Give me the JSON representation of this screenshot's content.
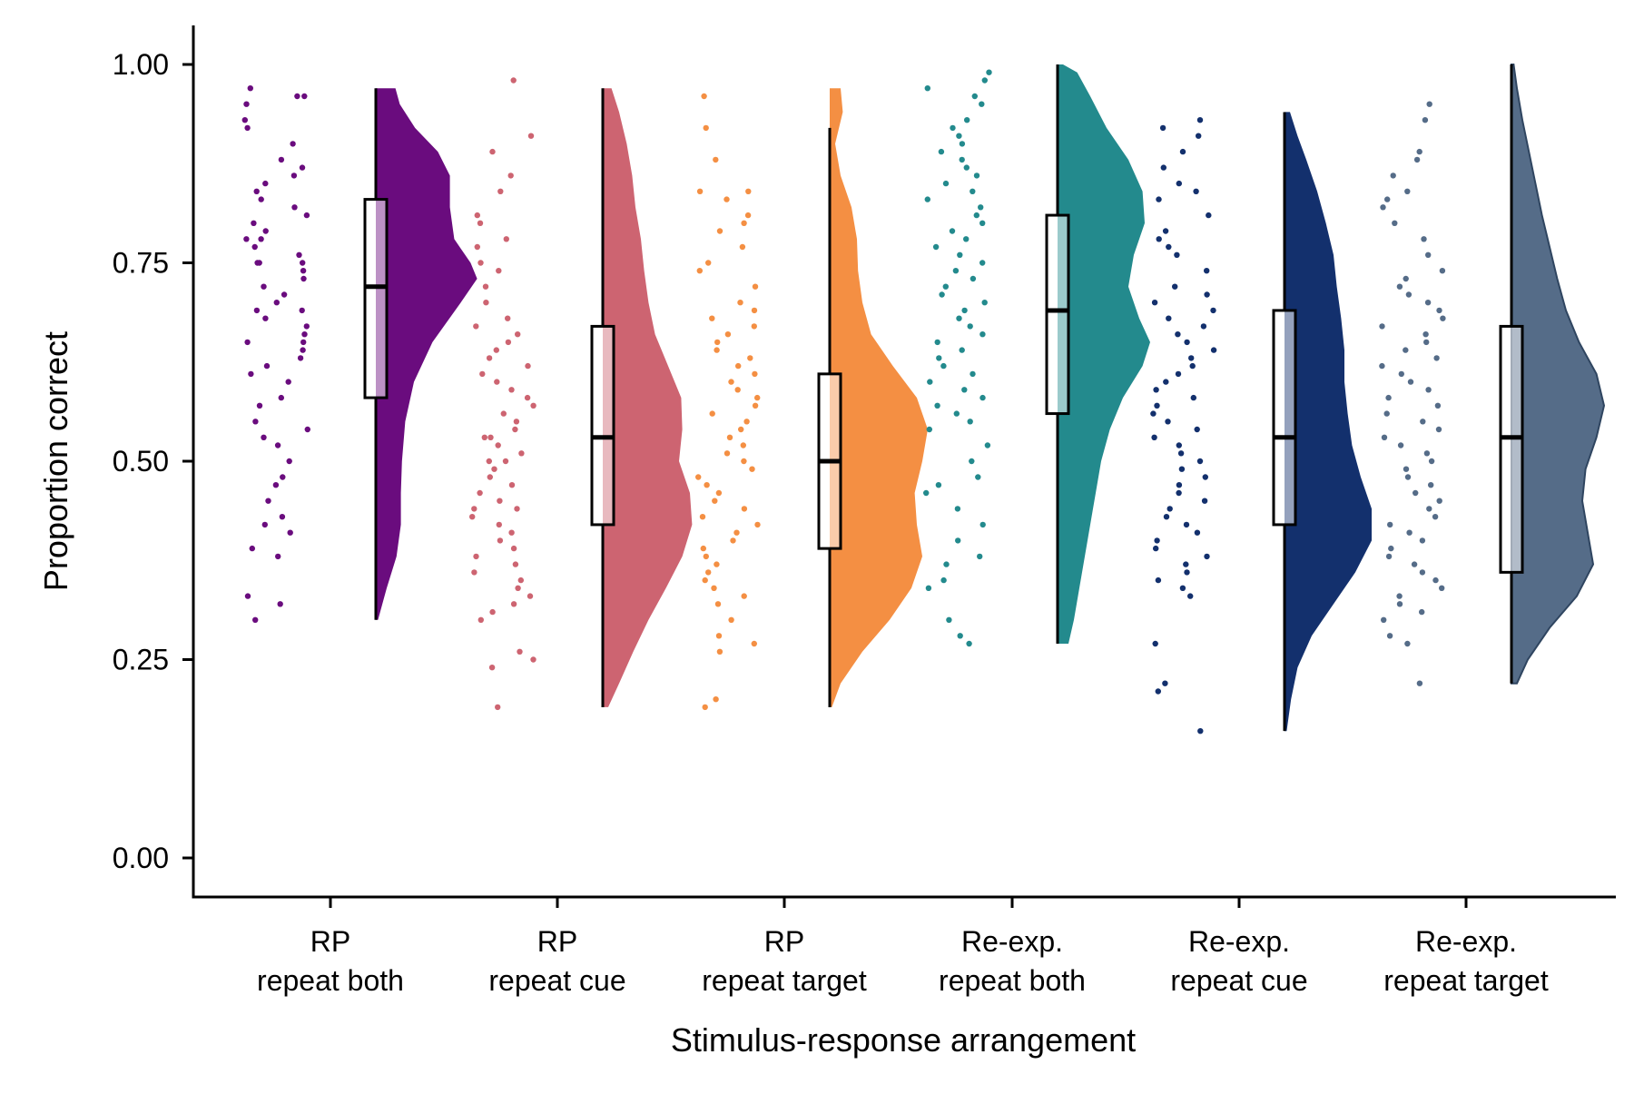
{
  "chart_data": {
    "type": "raincloud",
    "xlabel": "Stimulus-response arrangement",
    "ylabel": "Proportion correct",
    "ylim": [
      -0.05,
      1.05
    ],
    "yticks": [
      "0.00",
      "0.25",
      "0.50",
      "0.75",
      "1.00"
    ],
    "ytick_values": [
      0,
      0.25,
      0.5,
      0.75,
      1.0
    ],
    "grid": false,
    "legend": "none",
    "categories": [
      {
        "label_line1": "RP",
        "label_line2": "repeat both",
        "color": "#6a0c7e",
        "box": {
          "lower_whisker": 0.3,
          "q1": 0.58,
          "median": 0.72,
          "q3": 0.83,
          "upper_whisker": 0.97
        },
        "density_range": [
          0.3,
          0.97
        ],
        "density": [
          [
            0.3,
            0.02
          ],
          [
            0.34,
            0.1
          ],
          [
            0.38,
            0.19
          ],
          [
            0.42,
            0.23
          ],
          [
            0.46,
            0.23
          ],
          [
            0.5,
            0.24
          ],
          [
            0.55,
            0.27
          ],
          [
            0.6,
            0.35
          ],
          [
            0.65,
            0.52
          ],
          [
            0.7,
            0.78
          ],
          [
            0.73,
            0.93
          ],
          [
            0.75,
            0.87
          ],
          [
            0.78,
            0.72
          ],
          [
            0.82,
            0.68
          ],
          [
            0.86,
            0.68
          ],
          [
            0.89,
            0.57
          ],
          [
            0.92,
            0.36
          ],
          [
            0.95,
            0.22
          ],
          [
            0.97,
            0.18
          ]
        ],
        "points": [
          0.97,
          0.96,
          0.96,
          0.95,
          0.93,
          0.92,
          0.9,
          0.88,
          0.87,
          0.86,
          0.85,
          0.84,
          0.83,
          0.82,
          0.81,
          0.8,
          0.79,
          0.78,
          0.78,
          0.77,
          0.76,
          0.75,
          0.75,
          0.75,
          0.74,
          0.73,
          0.72,
          0.71,
          0.7,
          0.69,
          0.69,
          0.68,
          0.67,
          0.66,
          0.65,
          0.65,
          0.64,
          0.63,
          0.62,
          0.61,
          0.6,
          0.58,
          0.57,
          0.55,
          0.54,
          0.53,
          0.52,
          0.5,
          0.48,
          0.47,
          0.45,
          0.43,
          0.42,
          0.41,
          0.39,
          0.38,
          0.33,
          0.32,
          0.3
        ]
      },
      {
        "label_line1": "RP",
        "label_line2": "repeat cue",
        "color": "#cd6471",
        "box": {
          "lower_whisker": 0.19,
          "q1": 0.42,
          "median": 0.53,
          "q3": 0.67,
          "upper_whisker": 0.97
        },
        "density_range": [
          0.19,
          0.97
        ],
        "density": [
          [
            0.19,
            0.05
          ],
          [
            0.22,
            0.15
          ],
          [
            0.26,
            0.28
          ],
          [
            0.3,
            0.42
          ],
          [
            0.34,
            0.58
          ],
          [
            0.38,
            0.73
          ],
          [
            0.42,
            0.82
          ],
          [
            0.46,
            0.8
          ],
          [
            0.5,
            0.7
          ],
          [
            0.54,
            0.73
          ],
          [
            0.58,
            0.72
          ],
          [
            0.62,
            0.6
          ],
          [
            0.66,
            0.48
          ],
          [
            0.7,
            0.42
          ],
          [
            0.74,
            0.38
          ],
          [
            0.78,
            0.35
          ],
          [
            0.82,
            0.3
          ],
          [
            0.86,
            0.27
          ],
          [
            0.9,
            0.22
          ],
          [
            0.94,
            0.15
          ],
          [
            0.97,
            0.08
          ]
        ],
        "points": [
          0.98,
          0.91,
          0.89,
          0.86,
          0.84,
          0.81,
          0.8,
          0.78,
          0.77,
          0.75,
          0.74,
          0.72,
          0.7,
          0.68,
          0.67,
          0.66,
          0.65,
          0.64,
          0.63,
          0.62,
          0.61,
          0.6,
          0.59,
          0.58,
          0.57,
          0.56,
          0.55,
          0.54,
          0.53,
          0.53,
          0.52,
          0.51,
          0.5,
          0.5,
          0.49,
          0.48,
          0.47,
          0.46,
          0.45,
          0.44,
          0.44,
          0.43,
          0.42,
          0.41,
          0.4,
          0.39,
          0.38,
          0.37,
          0.36,
          0.35,
          0.34,
          0.33,
          0.32,
          0.31,
          0.3,
          0.26,
          0.25,
          0.24,
          0.19
        ]
      },
      {
        "label_line1": "RP",
        "label_line2": "repeat target",
        "color": "#f48f43",
        "box": {
          "lower_whisker": 0.19,
          "q1": 0.39,
          "median": 0.5,
          "q3": 0.61,
          "upper_whisker": 0.92
        },
        "density_range": [
          0.19,
          0.97
        ],
        "density": [
          [
            0.19,
            0.02
          ],
          [
            0.22,
            0.1
          ],
          [
            0.26,
            0.3
          ],
          [
            0.3,
            0.55
          ],
          [
            0.34,
            0.75
          ],
          [
            0.38,
            0.85
          ],
          [
            0.42,
            0.8
          ],
          [
            0.46,
            0.78
          ],
          [
            0.5,
            0.85
          ],
          [
            0.54,
            0.9
          ],
          [
            0.58,
            0.8
          ],
          [
            0.62,
            0.58
          ],
          [
            0.66,
            0.38
          ],
          [
            0.7,
            0.3
          ],
          [
            0.74,
            0.26
          ],
          [
            0.78,
            0.25
          ],
          [
            0.82,
            0.2
          ],
          [
            0.86,
            0.1
          ],
          [
            0.9,
            0.05
          ],
          [
            0.94,
            0.12
          ],
          [
            0.97,
            0.1
          ]
        ],
        "points": [
          0.96,
          0.92,
          0.88,
          0.84,
          0.84,
          0.83,
          0.81,
          0.8,
          0.79,
          0.77,
          0.75,
          0.74,
          0.72,
          0.7,
          0.69,
          0.68,
          0.67,
          0.66,
          0.65,
          0.64,
          0.63,
          0.62,
          0.61,
          0.6,
          0.59,
          0.58,
          0.57,
          0.56,
          0.55,
          0.54,
          0.53,
          0.52,
          0.51,
          0.5,
          0.49,
          0.48,
          0.47,
          0.46,
          0.45,
          0.44,
          0.43,
          0.42,
          0.41,
          0.4,
          0.39,
          0.38,
          0.37,
          0.36,
          0.35,
          0.34,
          0.33,
          0.32,
          0.3,
          0.28,
          0.27,
          0.26,
          0.2,
          0.19
        ]
      },
      {
        "label_line1": "Re-exp.",
        "label_line2": "repeat both",
        "color": "#238a8d",
        "box": {
          "lower_whisker": 0.27,
          "q1": 0.56,
          "median": 0.69,
          "q3": 0.81,
          "upper_whisker": 1.0
        },
        "density_range": [
          0.27,
          1.0
        ],
        "density": [
          [
            0.27,
            0.1
          ],
          [
            0.3,
            0.15
          ],
          [
            0.34,
            0.2
          ],
          [
            0.38,
            0.25
          ],
          [
            0.42,
            0.3
          ],
          [
            0.46,
            0.35
          ],
          [
            0.5,
            0.4
          ],
          [
            0.54,
            0.48
          ],
          [
            0.58,
            0.6
          ],
          [
            0.62,
            0.78
          ],
          [
            0.65,
            0.85
          ],
          [
            0.68,
            0.75
          ],
          [
            0.72,
            0.65
          ],
          [
            0.76,
            0.7
          ],
          [
            0.8,
            0.8
          ],
          [
            0.84,
            0.78
          ],
          [
            0.88,
            0.65
          ],
          [
            0.92,
            0.45
          ],
          [
            0.96,
            0.3
          ],
          [
            0.99,
            0.18
          ],
          [
            1.0,
            0.05
          ]
        ],
        "points": [
          0.99,
          0.98,
          0.97,
          0.96,
          0.95,
          0.93,
          0.92,
          0.91,
          0.9,
          0.89,
          0.88,
          0.87,
          0.86,
          0.85,
          0.84,
          0.83,
          0.82,
          0.81,
          0.8,
          0.79,
          0.78,
          0.77,
          0.76,
          0.75,
          0.74,
          0.73,
          0.72,
          0.71,
          0.7,
          0.69,
          0.68,
          0.67,
          0.66,
          0.65,
          0.64,
          0.63,
          0.62,
          0.61,
          0.6,
          0.59,
          0.58,
          0.57,
          0.56,
          0.55,
          0.54,
          0.52,
          0.5,
          0.48,
          0.47,
          0.46,
          0.44,
          0.42,
          0.4,
          0.38,
          0.37,
          0.35,
          0.34,
          0.3,
          0.28,
          0.27
        ]
      },
      {
        "label_line1": "Re-exp.",
        "label_line2": "repeat cue",
        "color": "#13306d",
        "box": {
          "lower_whisker": 0.16,
          "q1": 0.42,
          "median": 0.53,
          "q3": 0.69,
          "upper_whisker": 0.94
        },
        "density_range": [
          0.16,
          0.94
        ],
        "density": [
          [
            0.16,
            0.02
          ],
          [
            0.2,
            0.06
          ],
          [
            0.24,
            0.12
          ],
          [
            0.28,
            0.25
          ],
          [
            0.32,
            0.45
          ],
          [
            0.36,
            0.65
          ],
          [
            0.4,
            0.8
          ],
          [
            0.44,
            0.8
          ],
          [
            0.48,
            0.7
          ],
          [
            0.52,
            0.62
          ],
          [
            0.56,
            0.58
          ],
          [
            0.6,
            0.55
          ],
          [
            0.64,
            0.55
          ],
          [
            0.68,
            0.52
          ],
          [
            0.72,
            0.48
          ],
          [
            0.76,
            0.45
          ],
          [
            0.8,
            0.38
          ],
          [
            0.84,
            0.3
          ],
          [
            0.88,
            0.2
          ],
          [
            0.91,
            0.12
          ],
          [
            0.94,
            0.05
          ]
        ],
        "points": [
          0.93,
          0.92,
          0.91,
          0.89,
          0.87,
          0.85,
          0.84,
          0.83,
          0.81,
          0.79,
          0.78,
          0.77,
          0.76,
          0.74,
          0.72,
          0.71,
          0.7,
          0.69,
          0.68,
          0.67,
          0.66,
          0.65,
          0.64,
          0.63,
          0.62,
          0.61,
          0.6,
          0.59,
          0.58,
          0.57,
          0.56,
          0.55,
          0.54,
          0.53,
          0.52,
          0.51,
          0.5,
          0.49,
          0.48,
          0.47,
          0.46,
          0.45,
          0.44,
          0.43,
          0.42,
          0.41,
          0.4,
          0.39,
          0.38,
          0.37,
          0.36,
          0.35,
          0.34,
          0.33,
          0.27,
          0.22,
          0.21,
          0.16
        ]
      },
      {
        "label_line1": "Re-exp.",
        "label_line2": "repeat target",
        "color": "#556c88",
        "box": {
          "lower_whisker": 0.22,
          "q1": 0.36,
          "median": 0.53,
          "q3": 0.67,
          "upper_whisker": 1.0
        },
        "density_range": [
          0.22,
          1.0
        ],
        "density": [
          [
            0.22,
            0.05
          ],
          [
            0.25,
            0.15
          ],
          [
            0.29,
            0.35
          ],
          [
            0.33,
            0.6
          ],
          [
            0.37,
            0.75
          ],
          [
            0.41,
            0.7
          ],
          [
            0.45,
            0.65
          ],
          [
            0.49,
            0.68
          ],
          [
            0.53,
            0.78
          ],
          [
            0.57,
            0.85
          ],
          [
            0.61,
            0.78
          ],
          [
            0.65,
            0.62
          ],
          [
            0.69,
            0.5
          ],
          [
            0.73,
            0.42
          ],
          [
            0.77,
            0.35
          ],
          [
            0.81,
            0.28
          ],
          [
            0.85,
            0.22
          ],
          [
            0.89,
            0.16
          ],
          [
            0.93,
            0.1
          ],
          [
            0.97,
            0.05
          ],
          [
            1.0,
            0.02
          ]
        ],
        "points": [
          0.95,
          0.93,
          0.89,
          0.88,
          0.86,
          0.84,
          0.83,
          0.82,
          0.8,
          0.78,
          0.76,
          0.74,
          0.73,
          0.72,
          0.71,
          0.7,
          0.69,
          0.68,
          0.67,
          0.66,
          0.65,
          0.64,
          0.63,
          0.62,
          0.61,
          0.6,
          0.59,
          0.58,
          0.57,
          0.56,
          0.55,
          0.54,
          0.53,
          0.52,
          0.51,
          0.5,
          0.49,
          0.48,
          0.47,
          0.46,
          0.45,
          0.44,
          0.43,
          0.42,
          0.41,
          0.4,
          0.39,
          0.38,
          0.37,
          0.36,
          0.35,
          0.34,
          0.33,
          0.32,
          0.31,
          0.3,
          0.28,
          0.27,
          0.22
        ]
      }
    ]
  }
}
